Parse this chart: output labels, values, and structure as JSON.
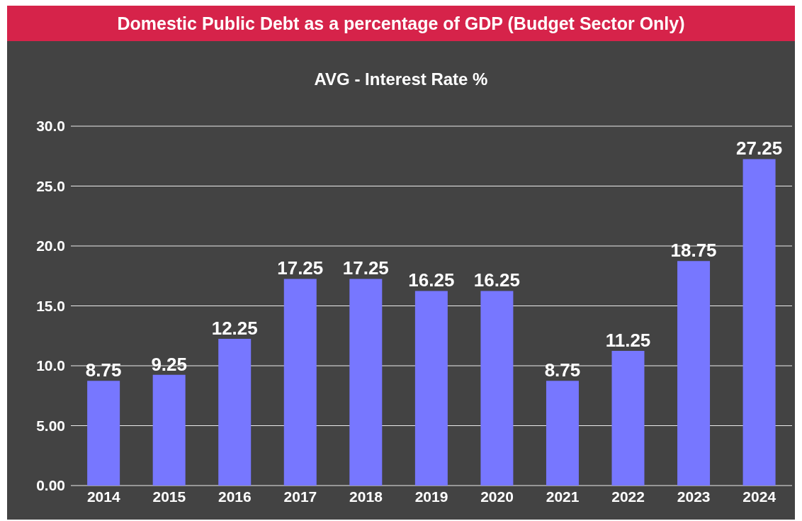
{
  "chart_data": {
    "type": "bar",
    "title": "Domestic Public Debt as a percentage of GDP (Budget Sector Only)",
    "subtitle": "AVG - Interest Rate %",
    "categories": [
      "2014",
      "2015",
      "2016",
      "2017",
      "2018",
      "2019",
      "2020",
      "2021",
      "2022",
      "2023",
      "2024"
    ],
    "values": [
      8.75,
      9.25,
      12.25,
      17.25,
      17.25,
      16.25,
      16.25,
      8.75,
      11.25,
      18.75,
      27.25
    ],
    "color": "#7777ff",
    "ylim": [
      0,
      30
    ],
    "yticks": [
      {
        "value": 0,
        "label": "0.00"
      },
      {
        "value": 5,
        "label": "5.00"
      },
      {
        "value": 10,
        "label": "10.0"
      },
      {
        "value": 15,
        "label": "15.0"
      },
      {
        "value": 20,
        "label": "20.0"
      },
      {
        "value": 25,
        "label": "25.0"
      },
      {
        "value": 30,
        "label": "30.0"
      }
    ],
    "grid": "y",
    "data_labels": true,
    "legend": false
  }
}
